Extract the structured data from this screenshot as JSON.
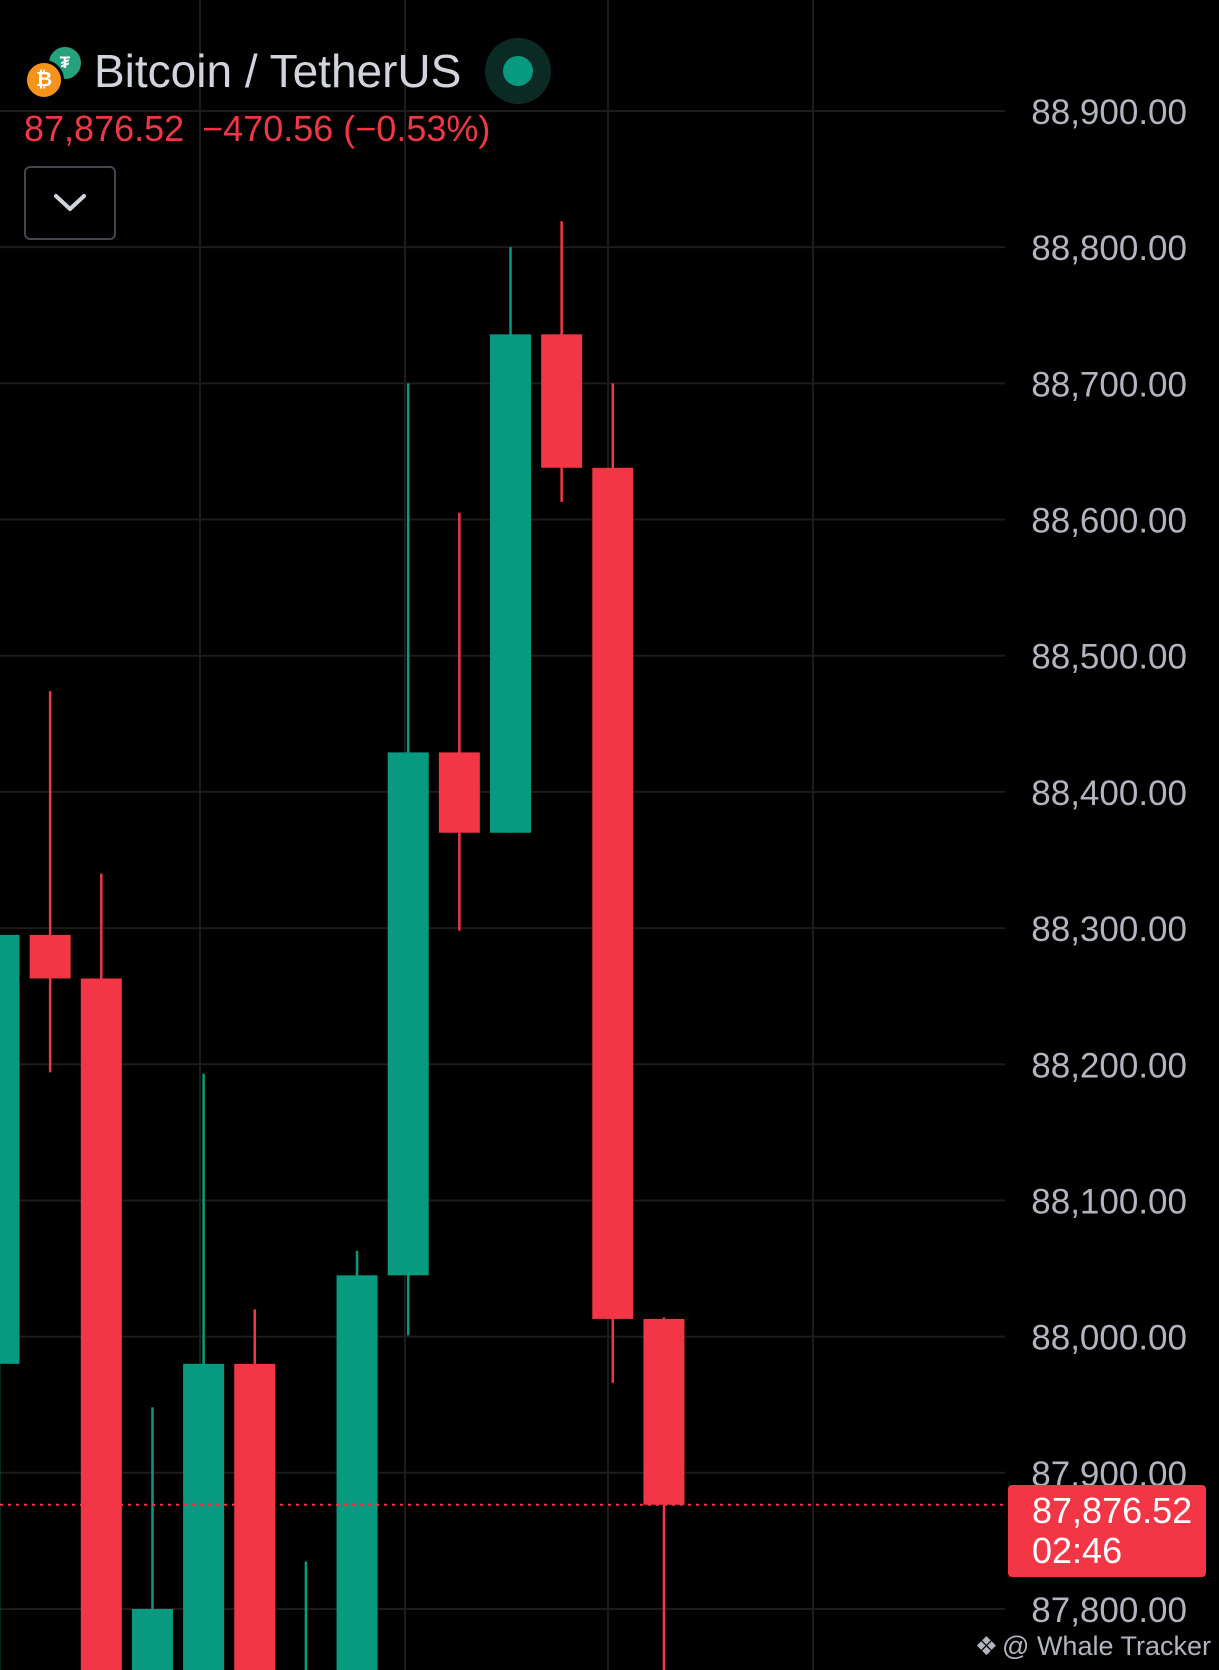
{
  "header": {
    "symbol_title": "Bitcoin / TetherUS",
    "last_price": "87,876.52",
    "change": "−470.56 (−0.53%)"
  },
  "icons": {
    "base": "bitcoin-icon",
    "quote": "tether-icon",
    "status": "market-open-dot-icon",
    "collapse": "chevron-down-icon",
    "watermark_logo": "diamond-logo-icon"
  },
  "price_label": {
    "price": "87,876.52",
    "countdown": "02:46"
  },
  "watermark": {
    "text": "@ Whale Tracker"
  },
  "colors": {
    "up": "#089981",
    "down": "#f23645",
    "background": "#000000",
    "grid": "#1c1c1c",
    "axis_text": "#b2b5be",
    "title_text": "#d1d4dc"
  },
  "chart_data": {
    "type": "candlestick",
    "ylim": [
      87760,
      88970
    ],
    "y_ticks": [
      "88,900.00",
      "88,800.00",
      "88,700.00",
      "88,600.00",
      "88,500.00",
      "88,400.00",
      "88,300.00",
      "88,200.00",
      "88,100.00",
      "88,000.00",
      "87,900.00",
      "87,800.00"
    ],
    "y_tick_values": [
      88900,
      88800,
      88700,
      88600,
      88500,
      88400,
      88300,
      88200,
      88100,
      88000,
      87900,
      87800
    ],
    "last_price": 87876.52,
    "grid": true,
    "candles": [
      {
        "open": 87980,
        "close": 88295,
        "high": 88295,
        "low": 87700
      },
      {
        "open": 88295,
        "close": 88263,
        "high": 88474,
        "low": 88194
      },
      {
        "open": 88263,
        "close": 87700,
        "high": 88340,
        "low": 87700
      },
      {
        "open": 87700,
        "close": 87800,
        "high": 87948,
        "low": 87700
      },
      {
        "open": 87700,
        "close": 87980,
        "high": 88193,
        "low": 87700
      },
      {
        "open": 87980,
        "close": 87700,
        "high": 88020,
        "low": 87700
      },
      {
        "open": 87700,
        "close": 87750,
        "high": 87835,
        "low": 87700
      },
      {
        "open": 87700,
        "close": 88045,
        "high": 88063,
        "low": 87700
      },
      {
        "open": 88045,
        "close": 88429,
        "high": 88700,
        "low": 88001
      },
      {
        "open": 88429,
        "close": 88370,
        "high": 88605,
        "low": 88298
      },
      {
        "open": 88370,
        "close": 88736,
        "high": 88800,
        "low": 88370
      },
      {
        "open": 88736,
        "close": 88638,
        "high": 88819,
        "low": 88613
      },
      {
        "open": 88638,
        "close": 88013,
        "high": 88700,
        "low": 87966
      },
      {
        "open": 88013,
        "close": 87876.52,
        "high": 88014,
        "low": 87700
      }
    ]
  }
}
